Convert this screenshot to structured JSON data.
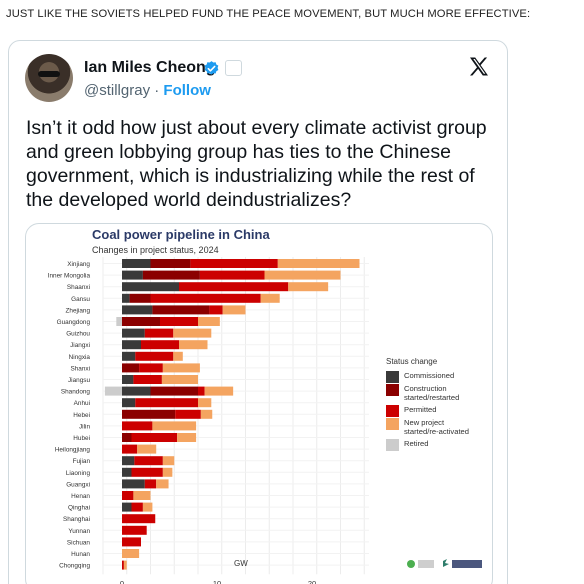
{
  "caption": "JUST LIKE THE SOVIETS HELPED FUND THE PEACE MOVEMENT, BUT MUCH MORE EFFECTIVE:",
  "tweet": {
    "author_name": "Ian Miles Cheong",
    "handle": "@stillgray",
    "separator": "·",
    "follow_label": "Follow",
    "text": "Isn’t it odd how just about every climate activist group and green lobbying group has ties to the Chinese government, which is industrializing while the rest of the developed world deindustrializes?",
    "verified_color": "#1d9bf0"
  },
  "chart_data": {
    "type": "bar",
    "stacked": true,
    "orientation": "horizontal",
    "title": "Coal power pipeline in China",
    "subtitle": "Changes in project status, 2024",
    "xlabel": "GW",
    "xlim": [
      -2,
      26
    ],
    "xticks": [
      0,
      10,
      20
    ],
    "grid": true,
    "legend_title": "Status change",
    "legend_position": "right",
    "categories": [
      "Xinjiang",
      "Inner Mongolia",
      "Shaanxi",
      "Gansu",
      "Zhejiang",
      "Guangdong",
      "Guizhou",
      "Jiangxi",
      "Ningxia",
      "Shanxi",
      "Jiangsu",
      "Shandong",
      "Anhui",
      "Hebei",
      "Jilin",
      "Hubei",
      "Heilongjiang",
      "Fujian",
      "Liaoning",
      "Guangxi",
      "Henan",
      "Qinghai",
      "Shanghai",
      "Yunnan",
      "Sichuan",
      "Hunan",
      "Chongqing"
    ],
    "series": [
      {
        "name": "Commissioned",
        "color": "#3a3a3a",
        "values": [
          3.0,
          2.2,
          6.0,
          0.8,
          3.2,
          0,
          2.4,
          2.0,
          1.4,
          0,
          1.2,
          3.0,
          1.4,
          0,
          0,
          0,
          0,
          1.3,
          1.0,
          2.4,
          0,
          1.0,
          0,
          0,
          0,
          0,
          0
        ]
      },
      {
        "name": "Construction started/restarted",
        "color": "#8b0000",
        "values": [
          4.2,
          6.0,
          0,
          2.2,
          6.0,
          4.0,
          0,
          0,
          0,
          1.8,
          0,
          5.0,
          0,
          5.6,
          0,
          1.0,
          0,
          0,
          0,
          0,
          0,
          0,
          0,
          0,
          0,
          0,
          0
        ]
      },
      {
        "name": "Permitted",
        "color": "#cc0000",
        "values": [
          9.2,
          6.8,
          11.5,
          11.6,
          1.4,
          4.0,
          3.0,
          4.0,
          4.0,
          2.5,
          3.0,
          0.7,
          6.6,
          2.7,
          3.2,
          4.8,
          1.6,
          3.0,
          3.3,
          1.2,
          1.2,
          1.2,
          3.5,
          2.6,
          2.0,
          0,
          0.2
        ]
      },
      {
        "name": "New project started/re-activated",
        "color": "#f4a460",
        "values": [
          8.6,
          8.0,
          4.2,
          2.0,
          2.4,
          2.3,
          4.0,
          3.0,
          1.0,
          3.9,
          3.8,
          3.0,
          1.4,
          1.2,
          4.6,
          2.0,
          2.0,
          1.2,
          1.0,
          1.3,
          1.8,
          1.0,
          0,
          0,
          0,
          1.8,
          0.3
        ]
      },
      {
        "name": "Retired",
        "color": "#cccccc",
        "values": [
          0,
          0,
          0,
          0,
          0,
          -0.6,
          0,
          0,
          0,
          0,
          0,
          -1.8,
          0,
          0,
          0,
          0,
          0,
          0,
          0,
          0,
          0,
          0,
          0,
          0,
          0,
          0,
          0
        ]
      }
    ]
  }
}
